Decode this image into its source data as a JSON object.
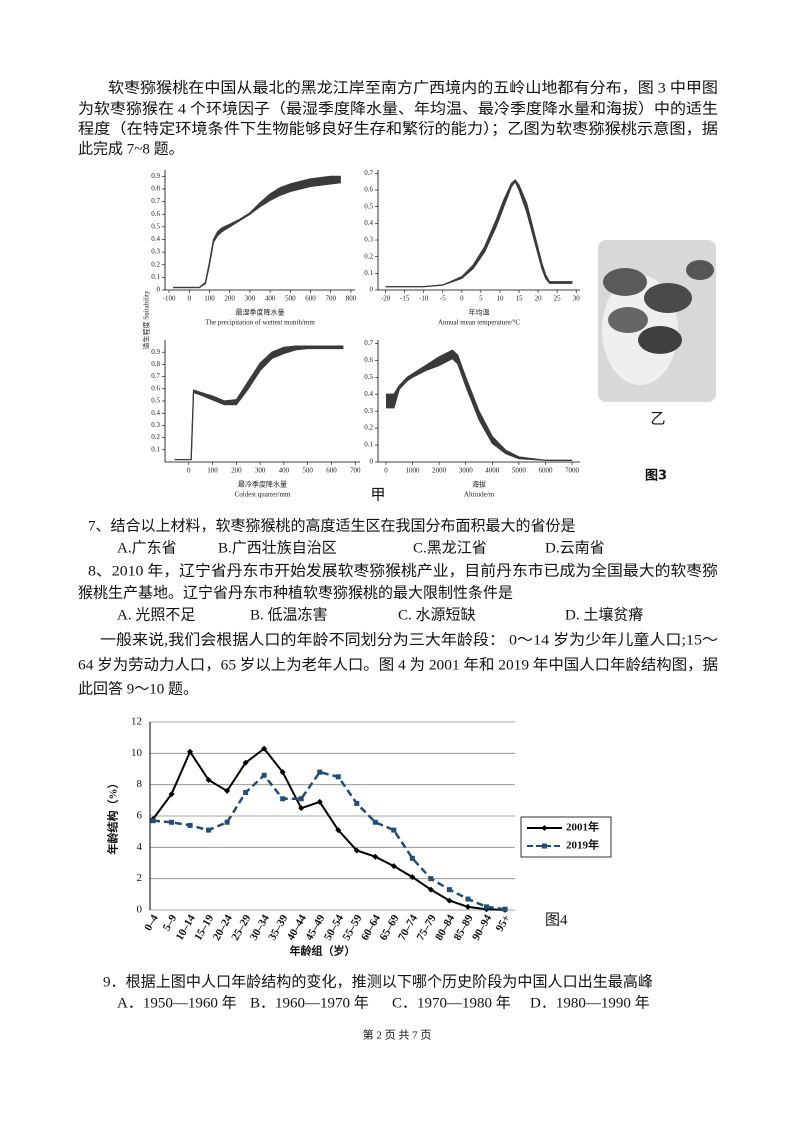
{
  "paragraph1": [
    "软枣猕猴桃在中国从最北的黑龙江岸至南方广西境内的五岭山地都有分布，图 3 中甲图",
    "为软枣猕猴在 4 个环境因子（最湿季度降水量、年均温、最冷季度降水量和海拔）中的适生",
    "程度（在特定环境条件下生物能够良好生存和繁衍的能力）；乙图为软枣猕猴桃示意图，据",
    "此完成 7~8 题。"
  ],
  "figure3": {
    "ylabel": "适生程度 Suitability",
    "panel_a": "甲",
    "panel_b": "乙",
    "caption": "图3"
  },
  "chart_data": [
    {
      "type": "band",
      "color": "#3a3a3a",
      "x": [
        -80,
        0,
        50,
        80,
        100,
        120,
        140,
        160,
        200,
        250,
        300,
        350,
        400,
        450,
        500,
        550,
        600,
        650,
        700,
        750
      ],
      "series": [
        {
          "values": [
            0.02,
            0.02,
            0.02,
            0.05,
            0.2,
            0.38,
            0.43,
            0.46,
            0.5,
            0.55,
            0.6,
            0.66,
            0.71,
            0.75,
            0.78,
            0.8,
            0.82,
            0.83,
            0.84,
            0.85
          ]
        },
        {
          "values": [
            0.02,
            0.02,
            0.02,
            0.06,
            0.22,
            0.4,
            0.46,
            0.49,
            0.52,
            0.56,
            0.61,
            0.69,
            0.76,
            0.81,
            0.84,
            0.86,
            0.88,
            0.89,
            0.9,
            0.9
          ]
        }
      ],
      "xlim": [
        -120,
        820
      ],
      "xticks": [
        -100,
        0,
        100,
        200,
        300,
        400,
        500,
        600,
        700,
        800
      ],
      "ylim": [
        0,
        0.95
      ],
      "yticks": [
        0,
        0.1,
        0.2,
        0.3,
        0.4,
        0.5,
        0.6,
        0.7,
        0.8,
        0.9
      ],
      "xlabel": "最湿季度降水量",
      "xlabel_en": "The precipitation of wettest month/mm"
    },
    {
      "type": "band",
      "color": "#3a3a3a",
      "x": [
        -20,
        -15,
        -10,
        -5,
        0,
        3,
        6,
        9,
        11,
        13,
        14,
        15,
        17,
        19,
        21,
        22,
        23,
        25,
        27,
        29
      ],
      "series": [
        {
          "values": [
            0.02,
            0.02,
            0.02,
            0.03,
            0.07,
            0.13,
            0.23,
            0.38,
            0.5,
            0.62,
            0.65,
            0.6,
            0.47,
            0.3,
            0.13,
            0.07,
            0.04,
            0.04,
            0.04,
            0.04
          ]
        },
        {
          "values": [
            0.02,
            0.02,
            0.02,
            0.03,
            0.08,
            0.15,
            0.26,
            0.42,
            0.54,
            0.64,
            0.66,
            0.63,
            0.52,
            0.34,
            0.16,
            0.09,
            0.05,
            0.05,
            0.05,
            0.05
          ]
        }
      ],
      "xlim": [
        -22,
        31
      ],
      "xticks": [
        -20,
        -15,
        -10,
        -5,
        0,
        5,
        10,
        15,
        20,
        25,
        30
      ],
      "ylim": [
        0,
        0.72
      ],
      "yticks": [
        0,
        0.1,
        0.2,
        0.3,
        0.4,
        0.5,
        0.6,
        0.7
      ],
      "xlabel": "年均温",
      "xlabel_en": "Annual mean temperature/°C"
    },
    {
      "type": "band",
      "color": "#3a3a3a",
      "x": [
        -60,
        0,
        10,
        20,
        50,
        100,
        150,
        200,
        250,
        300,
        350,
        400,
        450,
        500,
        550,
        600,
        650
      ],
      "series": [
        {
          "values": [
            0.02,
            0.02,
            0.02,
            0.57,
            0.55,
            0.51,
            0.47,
            0.47,
            0.6,
            0.75,
            0.85,
            0.89,
            0.92,
            0.93,
            0.93,
            0.93,
            0.93
          ]
        },
        {
          "values": [
            0.02,
            0.02,
            0.02,
            0.59,
            0.57,
            0.54,
            0.5,
            0.51,
            0.66,
            0.81,
            0.9,
            0.94,
            0.95,
            0.95,
            0.95,
            0.95,
            0.95
          ]
        }
      ],
      "xlim": [
        -100,
        720
      ],
      "xticks": [
        0,
        100,
        200,
        300,
        400,
        500,
        600,
        700
      ],
      "ylim": [
        0,
        1
      ],
      "yticks": [
        0.1,
        0.2,
        0.3,
        0.4,
        0.5,
        0.6,
        0.7,
        0.8,
        0.9
      ],
      "xlabel": "最冷季度降水量",
      "xlabel_en": "Coldest quarter/mm"
    },
    {
      "type": "band",
      "color": "#3a3a3a",
      "x": [
        0,
        300,
        500,
        800,
        1000,
        1500,
        2000,
        2500,
        2700,
        3000,
        3500,
        4000,
        4500,
        5000,
        6000,
        7000
      ],
      "series": [
        {
          "values": [
            0.32,
            0.32,
            0.43,
            0.48,
            0.5,
            0.54,
            0.57,
            0.61,
            0.58,
            0.45,
            0.25,
            0.11,
            0.05,
            0.02,
            0.01,
            0.01
          ]
        },
        {
          "values": [
            0.4,
            0.4,
            0.45,
            0.5,
            0.52,
            0.57,
            0.62,
            0.66,
            0.63,
            0.5,
            0.3,
            0.15,
            0.07,
            0.03,
            0.01,
            0.01
          ]
        }
      ],
      "xlim": [
        -300,
        7300
      ],
      "xticks": [
        0,
        1000,
        2000,
        3000,
        4000,
        5000,
        6000,
        7000
      ],
      "ylim": [
        0,
        0.72
      ],
      "yticks": [
        0,
        0.1,
        0.2,
        0.3,
        0.4,
        0.5,
        0.6,
        0.7
      ],
      "xlabel": "海拔",
      "xlabel_en": "Altitude/m"
    },
    {
      "type": "line",
      "categories": [
        "0–4",
        "5–9",
        "10–14",
        "15–19",
        "20–24",
        "25–29",
        "30–34",
        "35–39",
        "40–44",
        "45–49",
        "50–54",
        "55–59",
        "60–64",
        "65–69",
        "70–74",
        "75–79",
        "80–84",
        "85–89",
        "90–94",
        "95+"
      ],
      "series": [
        {
          "name": "2001年",
          "color": "#000000",
          "marker": "diamond",
          "line_style": "solid",
          "values": [
            5.8,
            7.4,
            10.1,
            8.3,
            7.6,
            9.4,
            10.3,
            8.8,
            6.5,
            6.9,
            5.1,
            3.8,
            3.4,
            2.8,
            2.1,
            1.3,
            0.6,
            0.2,
            0.05,
            0.01
          ]
        },
        {
          "name": "2019年",
          "color": "#1f4e79",
          "marker": "square",
          "line_style": "dashed",
          "values": [
            5.7,
            5.6,
            5.4,
            5.1,
            5.6,
            7.5,
            8.6,
            7.1,
            7.1,
            8.8,
            8.5,
            6.8,
            5.6,
            5.1,
            3.3,
            2.0,
            1.3,
            0.7,
            0.2,
            0.05
          ]
        }
      ],
      "ylim": [
        0,
        12
      ],
      "yticks": [
        0,
        2,
        4,
        6,
        8,
        10,
        12
      ],
      "grid": true,
      "legend": "right",
      "xlabel": "年龄组（岁）",
      "ylabel": "年龄结构（%）"
    }
  ],
  "figure4_caption": "图4",
  "questions": [
    {
      "stem": [
        "7、结合以上材料，软枣猕猴桃的高度适生区在我国分布面积最大的省份是"
      ],
      "options": [
        "A.广东省",
        "B.广西壮族自治区",
        "C.黑龙江省",
        "D.云南省"
      ]
    },
    {
      "stem": [
        "8、2010 年，辽宁省丹东市开始发展软枣猕猴桃产业，目前丹东市已成为全国最大的软枣猕",
        "猴桃生产基地。辽宁省丹东市种植软枣猕猴桃的最大限制性条件是"
      ],
      "options": [
        "A. 光照不足",
        "B. 低温冻害",
        "C. 水源短缺",
        "D. 土壤贫瘠"
      ]
    },
    {
      "stem": [
        "9．根据上图中人口年龄结构的变化，推测以下哪个历史阶段为中国人口出生最高峰"
      ],
      "options": [
        "A．1950—1960 年",
        "B．1960—1970 年",
        "C．1970—1980 年",
        "D．1980—1990 年"
      ]
    }
  ],
  "paragraph2": [
    "一般来说,我们会根据人口的年龄不同划分为三大年龄段： 0～14 岁为少年儿童人口;15～",
    "64 岁为劳动力人口，65 岁以上为老年人口。图 4 为 2001 年和 2019 年中国人口年龄结构图，据",
    "此回答 9～10 题。"
  ],
  "footer": "第 2 页 共 7 页"
}
